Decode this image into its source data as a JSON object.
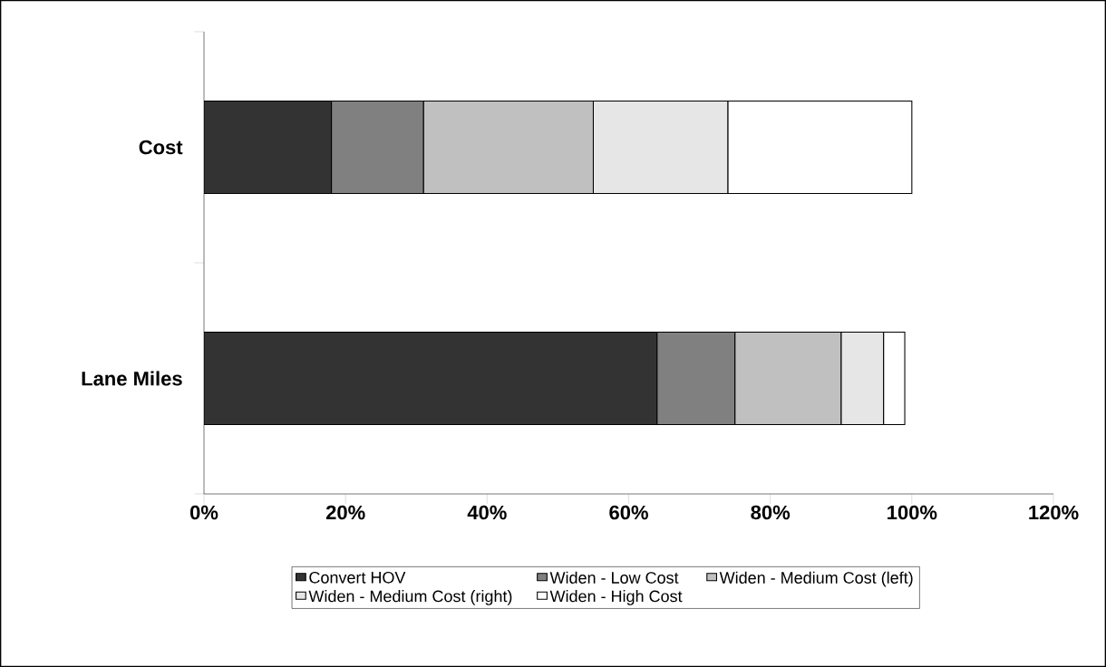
{
  "chart_data": {
    "type": "bar",
    "orientation": "horizontal",
    "stacked": true,
    "categories": [
      "Cost",
      "Lane Miles"
    ],
    "series": [
      {
        "name": "Convert HOV",
        "color": "#333333",
        "values": [
          18,
          64
        ]
      },
      {
        "name": "Widen - Low Cost",
        "color": "#808080",
        "values": [
          13,
          11
        ]
      },
      {
        "name": "Widen - Medium Cost (left)",
        "color": "#c0c0c0",
        "values": [
          24,
          15
        ]
      },
      {
        "name": "Widen - Medium Cost (right)",
        "color": "#e6e6e6",
        "values": [
          19,
          6
        ]
      },
      {
        "name": "Widen - High Cost",
        "color": "#ffffff",
        "values": [
          26,
          3
        ]
      }
    ],
    "xlim": [
      0,
      120
    ],
    "xticks": [
      {
        "value": 0,
        "label": "0%"
      },
      {
        "value": 20,
        "label": "20%"
      },
      {
        "value": 40,
        "label": "40%"
      },
      {
        "value": 60,
        "label": "60%"
      },
      {
        "value": 80,
        "label": "80%"
      },
      {
        "value": 100,
        "label": "100%"
      },
      {
        "value": 120,
        "label": "120%"
      }
    ],
    "grid": false,
    "legend": "bottom"
  }
}
